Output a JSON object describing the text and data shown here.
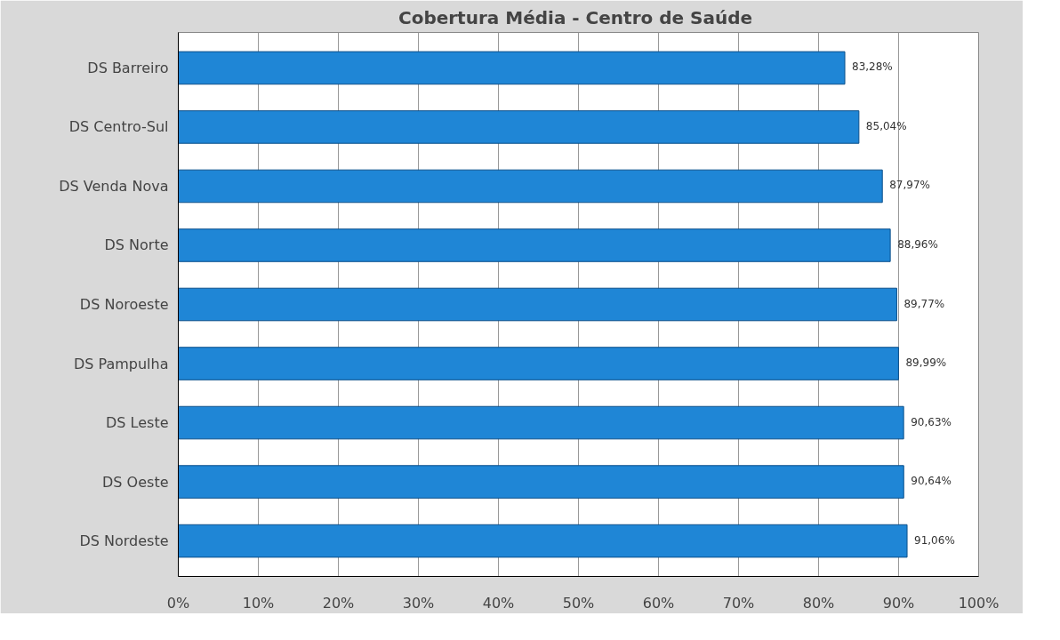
{
  "chart_data": {
    "type": "bar",
    "orientation": "horizontal",
    "title": "Cobertura Média  - Centro de Saúde",
    "categories": [
      "DS Barreiro",
      "DS Centro-Sul",
      "DS Venda Nova",
      "DS Norte",
      "DS Noroeste",
      "DS Pampulha",
      "DS Leste",
      "DS Oeste",
      "DS Nordeste"
    ],
    "values": [
      83.28,
      85.04,
      87.97,
      88.96,
      89.77,
      89.99,
      90.63,
      90.64,
      91.06
    ],
    "value_labels": [
      "83,28%",
      "85,04%",
      "87,97%",
      "88,96%",
      "89,77%",
      "89,99%",
      "90,63%",
      "90,64%",
      "91,06%"
    ],
    "color": "#1f86d6",
    "xlim": [
      0,
      100
    ],
    "xticks": [
      {
        "value": 0,
        "label": "0%"
      },
      {
        "value": 10,
        "label": "10%"
      },
      {
        "value": 20,
        "label": "20%"
      },
      {
        "value": 30,
        "label": "30%"
      },
      {
        "value": 40,
        "label": "40%"
      },
      {
        "value": 50,
        "label": "50%"
      },
      {
        "value": 60,
        "label": "60%"
      },
      {
        "value": 70,
        "label": "70%"
      },
      {
        "value": 80,
        "label": "80%"
      },
      {
        "value": 90,
        "label": "90%"
      },
      {
        "value": 100,
        "label": "100%"
      }
    ],
    "grid": "x"
  }
}
